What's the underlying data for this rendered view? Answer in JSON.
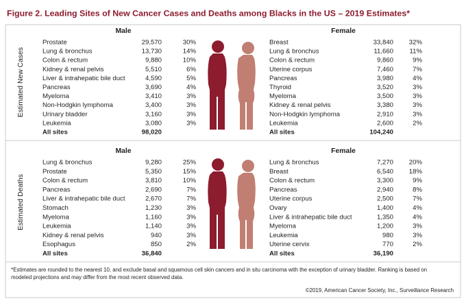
{
  "title": "Figure 2. Leading Sites of New Cancer Cases and Deaths among Blacks in the US – 2019 Estimates*",
  "panels": [
    {
      "label": "Estimated New Cases",
      "male": {
        "heading": "Male",
        "rows": [
          [
            "Prostate",
            "29,570",
            "30%"
          ],
          [
            "Lung & bronchus",
            "13,730",
            "14%"
          ],
          [
            "Colon & rectum",
            "9,880",
            "10%"
          ],
          [
            "Kidney & renal pelvis",
            "5,510",
            "6%"
          ],
          [
            "Liver & intrahepatic bile duct",
            "4,590",
            "5%"
          ],
          [
            "Pancreas",
            "3,690",
            "4%"
          ],
          [
            "Myeloma",
            "3,410",
            "3%"
          ],
          [
            "Non-Hodgkin lymphoma",
            "3,400",
            "3%"
          ],
          [
            "Urinary bladder",
            "3,160",
            "3%"
          ],
          [
            "Leukemia",
            "3,080",
            "3%"
          ]
        ],
        "total": [
          "All sites",
          "98,020"
        ]
      },
      "female": {
        "heading": "Female",
        "rows": [
          [
            "Breast",
            "33,840",
            "32%"
          ],
          [
            "Lung & bronchus",
            "11,660",
            "11%"
          ],
          [
            "Colon & rectum",
            "9,860",
            "9%"
          ],
          [
            "Uterine corpus",
            "7,460",
            "7%"
          ],
          [
            "Pancreas",
            "3,980",
            "4%"
          ],
          [
            "Thyroid",
            "3,520",
            "3%"
          ],
          [
            "Myeloma",
            "3,500",
            "3%"
          ],
          [
            "Kidney & renal pelvis",
            "3,380",
            "3%"
          ],
          [
            "Non-Hodgkin lymphoma",
            "2,910",
            "3%"
          ],
          [
            "Leukemia",
            "2,600",
            "2%"
          ]
        ],
        "total": [
          "All sites",
          "104,240"
        ]
      }
    },
    {
      "label": "Estimated Deaths",
      "male": {
        "heading": "Male",
        "rows": [
          [
            "Lung & bronchus",
            "9,280",
            "25%"
          ],
          [
            "Prostate",
            "5,350",
            "15%"
          ],
          [
            "Colon & rectum",
            "3,810",
            "10%"
          ],
          [
            "Pancreas",
            "2,690",
            "7%"
          ],
          [
            "Liver & intrahepatic bile duct",
            "2,670",
            "7%"
          ],
          [
            "Stomach",
            "1,230",
            "3%"
          ],
          [
            "Myeloma",
            "1,160",
            "3%"
          ],
          [
            "Leukemia",
            "1,140",
            "3%"
          ],
          [
            "Kidney & renal pelvis",
            "940",
            "3%"
          ],
          [
            "Esophagus",
            "850",
            "2%"
          ]
        ],
        "total": [
          "All sites",
          "36,840"
        ]
      },
      "female": {
        "heading": "Female",
        "rows": [
          [
            "Lung & bronchus",
            "7,270",
            "20%"
          ],
          [
            "Breast",
            "6,540",
            "18%"
          ],
          [
            "Colon & rectum",
            "3,300",
            "9%"
          ],
          [
            "Pancreas",
            "2,940",
            "8%"
          ],
          [
            "Uterine corpus",
            "2,500",
            "7%"
          ],
          [
            "Ovary",
            "1,400",
            "4%"
          ],
          [
            "Liver & intrahepatic bile duct",
            "1,350",
            "4%"
          ],
          [
            "Myeloma",
            "1,200",
            "3%"
          ],
          [
            "Leukemia",
            "980",
            "3%"
          ],
          [
            "Uterine cervix",
            "770",
            "2%"
          ]
        ],
        "total": [
          "All sites",
          "36,190"
        ]
      }
    }
  ],
  "footnote": [
    "*Estimates are rounded to the nearest 10, and exclude basal and squamous cell skin cancers and in situ carcinoma with the exception of urinary bladder. Ranking is based on",
    "modeled projections and may differ from the most recent observed data."
  ],
  "copyright": "©2019, American Cancer Society, Inc., Surveillance Research"
}
